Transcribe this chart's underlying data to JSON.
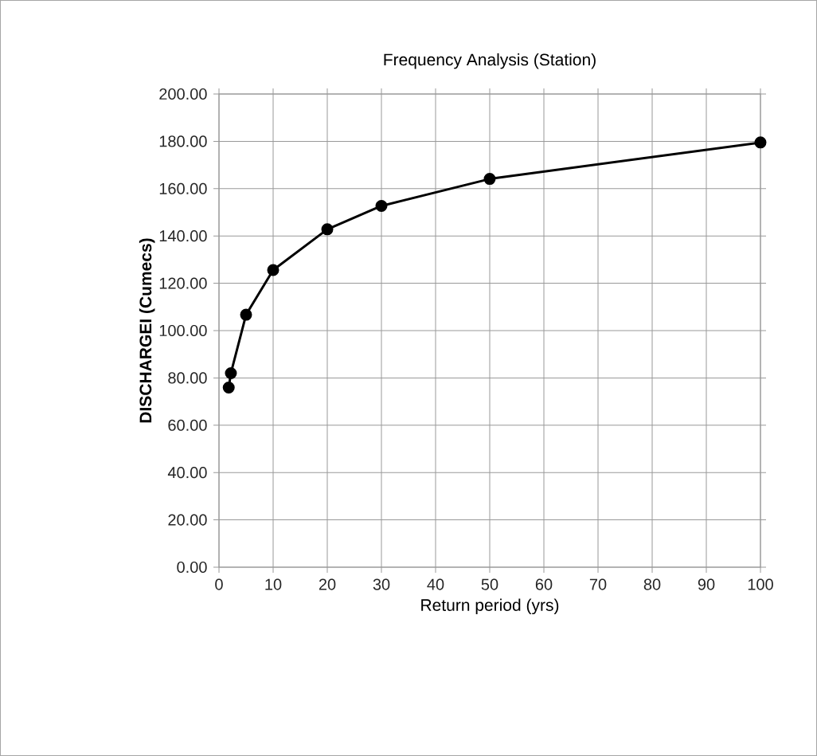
{
  "chart_data": {
    "type": "line",
    "title": "Frequency Analysis (Station)",
    "xlabel": "Return period (yrs)",
    "ylabel": "DISCHARGEI  (Cumecs)",
    "x": [
      1.8,
      2.2,
      5,
      10,
      20,
      30,
      50,
      100
    ],
    "series": [
      {
        "color": "#000000",
        "values": [
          75.9,
          82.0,
          106.7,
          125.6,
          142.8,
          152.7,
          164.1,
          179.5
        ]
      }
    ],
    "xlim": [
      0,
      100
    ],
    "xticks": [
      0,
      10,
      20,
      30,
      40,
      50,
      60,
      70,
      80,
      90,
      100
    ],
    "ylim": [
      0,
      200
    ],
    "yticks": [
      {
        "value": 0,
        "label": "0.00"
      },
      {
        "value": 20,
        "label": "20.00"
      },
      {
        "value": 40,
        "label": "40.00"
      },
      {
        "value": 60,
        "label": "60.00"
      },
      {
        "value": 80,
        "label": "80.00"
      },
      {
        "value": 100,
        "label": "100.00"
      },
      {
        "value": 120,
        "label": "120.00"
      },
      {
        "value": 140,
        "label": "140.00"
      },
      {
        "value": 160,
        "label": "160.00"
      },
      {
        "value": 180,
        "label": "180.00"
      },
      {
        "value": 200,
        "label": "200.00"
      }
    ],
    "grid": true,
    "marker": "circle",
    "line_style": "solid"
  }
}
